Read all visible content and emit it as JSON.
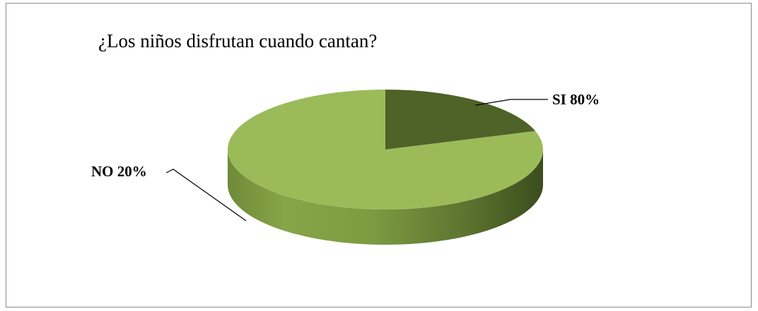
{
  "chart_data": {
    "type": "pie",
    "title": "¿Los niños disfrutan cuando cantan?",
    "style": "3d",
    "slices": [
      {
        "category": "SI",
        "label": "SI 80%",
        "value": 80,
        "color": "#4f6228"
      },
      {
        "category": "NO",
        "label": "NO 20%",
        "value": 20,
        "color": "#9bbb59"
      }
    ],
    "legend": "none"
  }
}
